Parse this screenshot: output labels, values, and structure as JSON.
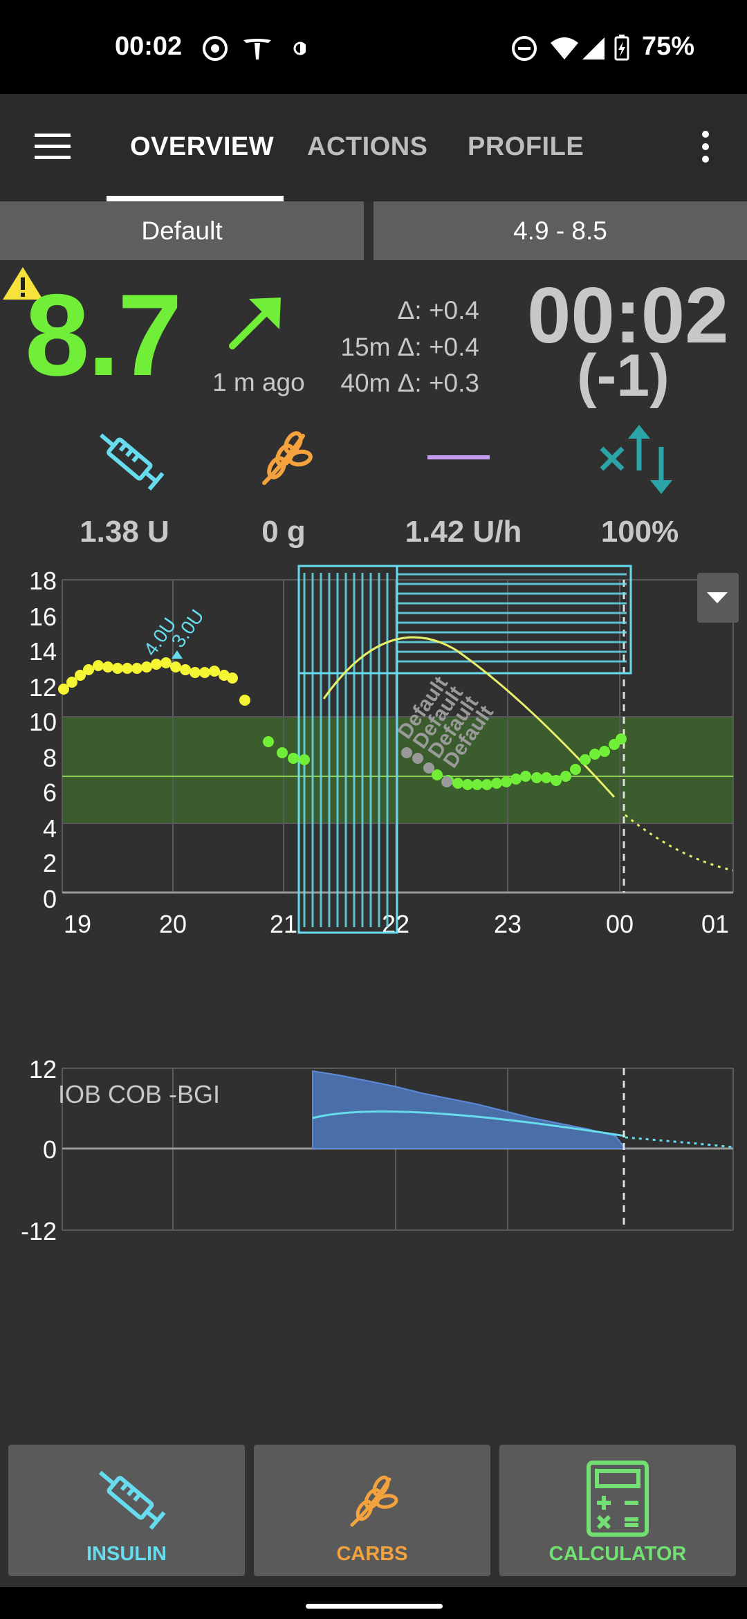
{
  "status_bar": {
    "time": "00:02",
    "battery": "75%",
    "icons": [
      "whatsapp-icon",
      "tesla-icon",
      "contrast-icon",
      "do-not-disturb-icon",
      "wifi-icon",
      "signal-icon",
      "battery-charging-icon"
    ]
  },
  "app_bar": {
    "tabs": [
      {
        "label": "OVERVIEW",
        "active": true
      },
      {
        "label": "ACTIONS",
        "active": false
      },
      {
        "label": "PROFILE",
        "active": false
      }
    ],
    "icons": [
      "menu-icon",
      "more-vert-icon"
    ]
  },
  "profile_row": {
    "profile": "Default",
    "target_range": "4.9 - 8.5"
  },
  "glucose": {
    "value": "8.7",
    "age": "1 m ago",
    "delta": "Δ: +0.4",
    "delta_15m": "15m Δ: +0.4",
    "delta_40m": "40m Δ: +0.3",
    "trend_icon": "arrow-up-right-icon",
    "warning_icon": "warning-icon",
    "color": "#71ee38"
  },
  "clock": {
    "time": "00:02",
    "offset": "(-1)"
  },
  "stats": {
    "iob": "1.38 U",
    "cob": "0 g",
    "basal": "1.42 U/h",
    "profile_percent": "100%"
  },
  "bg_chart": {
    "y_ticks": [
      "18",
      "16",
      "14",
      "12",
      "10",
      "8",
      "6",
      "4",
      "2",
      "0"
    ],
    "x_ticks": [
      "19",
      "20",
      "21",
      "22",
      "23",
      "00",
      "01"
    ],
    "annotations": [
      "4.0U",
      "3.0U"
    ],
    "profile_labels": [
      "Default",
      "Default",
      "Default",
      "Default"
    ]
  },
  "iob_chart": {
    "y_ticks": [
      "12",
      "0",
      "-12"
    ],
    "legend": "IOB COB -BGI"
  },
  "bottom_buttons": {
    "insulin": "INSULIN",
    "carbs": "CARBS",
    "calculator": "CALCULATOR"
  },
  "colors": {
    "insulin": "#67dcee",
    "carbs": "#f4a23e",
    "calculator": "#72e072",
    "bg_in_range": "#71ee38",
    "bg_high": "#f5f533",
    "target_band": "#3b5c2c"
  }
}
